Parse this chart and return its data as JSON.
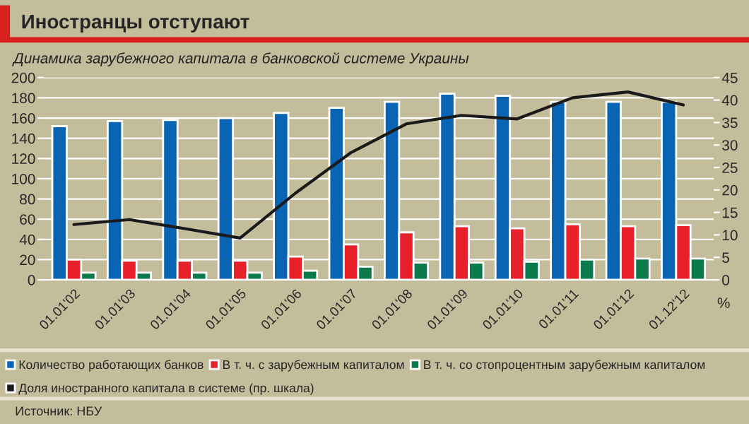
{
  "chart_data": {
    "type": "bar",
    "title": "Иностранцы отступают",
    "subtitle": "Динамика зарубежного капитала в банковской системе Украины",
    "categories": [
      "01.01'02",
      "01.01'03",
      "01.01'04",
      "01.01'05",
      "01.01'06",
      "01.01'07",
      "01.01'08",
      "01.01'09",
      "01.01'10",
      "01.01'11",
      "01.01'12",
      "01.12'12"
    ],
    "series": [
      {
        "name": "Количество работающих банков",
        "color": "#0a64b4",
        "values": [
          152,
          157,
          158,
          160,
          165,
          170,
          176,
          184,
          182,
          176,
          176,
          176
        ]
      },
      {
        "name": "В т. ч. с зарубежным капиталом",
        "color": "#e8202a",
        "values": [
          20,
          19,
          19,
          19,
          23,
          35,
          47,
          53,
          51,
          55,
          53,
          54
        ]
      },
      {
        "name": "В т. ч. со стопроцентным зарубежным капиталом",
        "color": "#0a7a4a",
        "values": [
          7,
          7,
          7,
          7,
          9,
          13,
          17,
          17,
          18,
          20,
          21,
          21
        ]
      },
      {
        "name": "Доля иностранного капитала в системе (пр. шкала)",
        "color": "#1a1a1a",
        "type": "line",
        "axis": "y2",
        "values": [
          12.3,
          13.4,
          11.4,
          9.3,
          19.3,
          28.3,
          34.7,
          36.6,
          35.8,
          40.5,
          41.8,
          38.9
        ]
      }
    ],
    "ylim": [
      0,
      200
    ],
    "yticks": [
      0,
      20,
      40,
      60,
      80,
      100,
      120,
      140,
      160,
      180,
      200
    ],
    "y2lim": [
      0,
      45
    ],
    "y2ticks": [
      0,
      5,
      10,
      15,
      20,
      25,
      30,
      35,
      40,
      45
    ],
    "y2label": "%",
    "grid": "y",
    "legend": "bottom",
    "marker": "none",
    "line_style": "solid",
    "annotations": [
      "Источник: НБУ"
    ]
  }
}
